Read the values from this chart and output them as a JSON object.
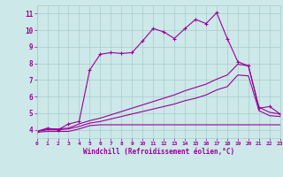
{
  "background_color": "#cce8e8",
  "grid_color": "#aacccc",
  "line_color": "#990099",
  "xlabel": "Windchill (Refroidissement éolien,°C)",
  "xlim": [
    0,
    23
  ],
  "ylim": [
    3.5,
    11.5
  ],
  "yticks": [
    4,
    5,
    6,
    7,
    8,
    9,
    10,
    11
  ],
  "xticks": [
    0,
    1,
    2,
    3,
    4,
    5,
    6,
    7,
    8,
    9,
    10,
    11,
    12,
    13,
    14,
    15,
    16,
    17,
    18,
    19,
    20,
    21,
    22,
    23
  ],
  "line1_x": [
    0,
    1,
    2,
    3,
    4,
    5,
    6,
    7,
    8,
    9,
    10,
    11,
    12,
    13,
    14,
    15,
    16,
    17,
    18,
    19,
    20,
    21,
    22,
    23
  ],
  "line1_y": [
    3.9,
    4.1,
    4.0,
    4.35,
    4.5,
    7.6,
    8.55,
    8.65,
    8.6,
    8.65,
    9.35,
    10.1,
    9.9,
    9.5,
    10.1,
    10.65,
    10.4,
    11.05,
    9.5,
    8.1,
    7.85,
    5.3,
    5.4,
    4.95
  ],
  "line2_x": [
    0,
    1,
    2,
    3,
    4,
    5,
    6,
    7,
    8,
    9,
    10,
    11,
    12,
    13,
    14,
    15,
    16,
    17,
    18,
    19,
    20,
    21,
    22,
    23
  ],
  "line2_y": [
    3.9,
    4.05,
    4.05,
    4.1,
    4.35,
    4.55,
    4.7,
    4.9,
    5.1,
    5.3,
    5.5,
    5.7,
    5.9,
    6.1,
    6.35,
    6.55,
    6.75,
    7.05,
    7.3,
    7.95,
    7.85,
    5.35,
    5.05,
    4.95
  ],
  "line3_x": [
    0,
    1,
    2,
    3,
    4,
    5,
    6,
    7,
    8,
    9,
    10,
    11,
    12,
    13,
    14,
    15,
    16,
    17,
    18,
    19,
    20,
    21,
    22,
    23
  ],
  "line3_y": [
    3.9,
    4.0,
    4.0,
    4.05,
    4.2,
    4.4,
    4.5,
    4.65,
    4.8,
    4.95,
    5.1,
    5.25,
    5.4,
    5.55,
    5.75,
    5.9,
    6.1,
    6.4,
    6.6,
    7.3,
    7.25,
    5.15,
    4.85,
    4.8
  ],
  "line4_x": [
    0,
    1,
    2,
    3,
    4,
    5,
    6,
    7,
    8,
    9,
    10,
    11,
    12,
    13,
    14,
    15,
    16,
    17,
    18,
    19,
    20,
    21,
    22,
    23
  ],
  "line4_y": [
    3.85,
    3.9,
    3.9,
    3.9,
    4.05,
    4.25,
    4.3,
    4.3,
    4.3,
    4.3,
    4.3,
    4.3,
    4.3,
    4.3,
    4.3,
    4.3,
    4.3,
    4.3,
    4.3,
    4.3,
    4.3,
    4.3,
    4.3,
    4.3
  ]
}
